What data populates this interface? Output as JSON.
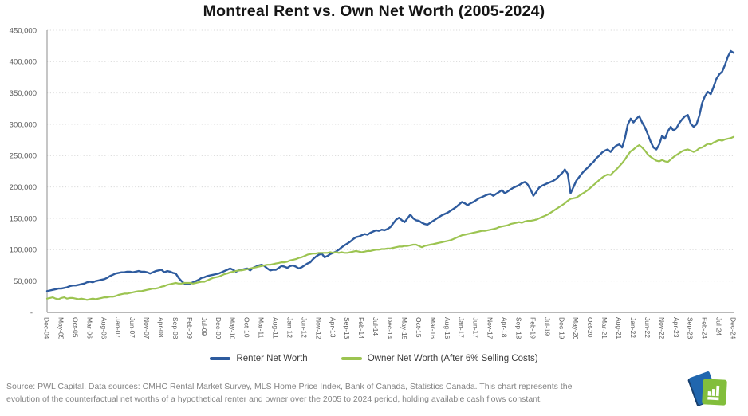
{
  "title": "Montreal Rent vs. Own Net Worth (2005-2024)",
  "footer": {
    "line1": "Source: PWL Capital. Data sources: CMHC Rental Market Survey, MLS Home Price Index, Bank of Canada, Statistics Canada. This chart represents the",
    "line2": "evolution of the counterfactual net worths of a hypothetical renter and owner over the 2005 to 2024 period, holding available cash flows constant."
  },
  "colors": {
    "renter_line": "#2E5B9E",
    "owner_line": "#9CC451",
    "grid": "#DADADA",
    "axis": "#A0A0A0",
    "tick_text": "#595959",
    "title_text": "#151515",
    "footer_text": "#848484",
    "logo_blue": "#2066AE",
    "logo_blue_dark": "#173F6E",
    "logo_green": "#82BE3B"
  },
  "chart_data": {
    "type": "line",
    "title": "Montreal Rent vs. Own Net Worth (2005-2024)",
    "xlabel": "",
    "ylabel": "",
    "currency_unit": "CAD",
    "grid": "horizontal-dotted",
    "legend_position": "bottom-center",
    "xlim_months": [
      0,
      240
    ],
    "x_start_label": "Dec-04",
    "x_end_label": "Dec-24",
    "x_tick_interval_months": 5,
    "x_tick_labels": [
      "Dec-04",
      "May-05",
      "Oct-05",
      "Mar-06",
      "Aug-06",
      "Jan-07",
      "Jun-07",
      "Nov-07",
      "Apr-08",
      "Sep-08",
      "Feb-09",
      "Jul-09",
      "Dec-09",
      "May-10",
      "Oct-10",
      "Mar-11",
      "Aug-11",
      "Jan-12",
      "Jun-12",
      "Nov-12",
      "Apr-13",
      "Sep-13",
      "Feb-14",
      "Jul-14",
      "Dec-14",
      "May-15",
      "Oct-15",
      "Mar-16",
      "Aug-16",
      "Jan-17",
      "Jun-17",
      "Nov-17",
      "Apr-18",
      "Sep-18",
      "Feb-19",
      "Jul-19",
      "Dec-19",
      "May-20",
      "Oct-20",
      "Mar-21",
      "Aug-21",
      "Jan-22",
      "Jun-22",
      "Nov-22",
      "Apr-23",
      "Sep-23",
      "Feb-24",
      "Jul-24",
      "Dec-24"
    ],
    "ylim": [
      0,
      450000
    ],
    "y_ticks": [
      {
        "value": 450000,
        "label": "450,000"
      },
      {
        "value": 400000,
        "label": "400,000"
      },
      {
        "value": 350000,
        "label": "350,000"
      },
      {
        "value": 300000,
        "label": "300,000"
      },
      {
        "value": 250000,
        "label": "250,000"
      },
      {
        "value": 200000,
        "label": "200,000"
      },
      {
        "value": 150000,
        "label": "150,000"
      },
      {
        "value": 100000,
        "label": "100,000"
      },
      {
        "value": 50000,
        "label": "50,000"
      },
      {
        "value": 0,
        "label": "-"
      }
    ],
    "series": [
      {
        "name": "Renter Net Worth",
        "color": "#2E5B9E",
        "width": 2.4,
        "values": [
          34000,
          35000,
          36000,
          37000,
          38000,
          38000,
          39000,
          40000,
          42000,
          43000,
          43000,
          44000,
          45000,
          46000,
          48000,
          49000,
          48000,
          50000,
          51000,
          52000,
          53000,
          55000,
          58000,
          60000,
          62000,
          63000,
          64000,
          64000,
          65000,
          65000,
          64000,
          65000,
          66000,
          65000,
          65000,
          64000,
          62000,
          64000,
          66000,
          67000,
          68000,
          64000,
          66000,
          65000,
          63000,
          62000,
          55000,
          50000,
          46000,
          45000,
          46000,
          48000,
          50000,
          52000,
          55000,
          56000,
          58000,
          59000,
          60000,
          61000,
          62000,
          64000,
          66000,
          68000,
          70000,
          68000,
          65000,
          67000,
          68000,
          69000,
          70000,
          67000,
          71000,
          73000,
          75000,
          76000,
          74000,
          70000,
          67000,
          68000,
          68000,
          71000,
          74000,
          73000,
          71000,
          74000,
          75000,
          73000,
          70000,
          72000,
          75000,
          78000,
          80000,
          85000,
          89000,
          92000,
          94000,
          88000,
          90000,
          93000,
          95000,
          97000,
          100000,
          104000,
          107000,
          110000,
          113000,
          117000,
          120000,
          121000,
          123000,
          125000,
          124000,
          127000,
          129000,
          131000,
          130000,
          132000,
          131000,
          133000,
          136000,
          142000,
          148000,
          151000,
          147000,
          144000,
          150000,
          156000,
          150000,
          147000,
          146000,
          143000,
          141000,
          140000,
          143000,
          146000,
          149000,
          152000,
          155000,
          157000,
          159000,
          162000,
          165000,
          168000,
          172000,
          176000,
          174000,
          171000,
          174000,
          176000,
          179000,
          182000,
          184000,
          186000,
          188000,
          189000,
          186000,
          189000,
          192000,
          195000,
          190000,
          193000,
          196000,
          199000,
          201000,
          203000,
          206000,
          208000,
          204000,
          196000,
          186000,
          192000,
          199000,
          202000,
          204000,
          206000,
          208000,
          210000,
          213000,
          218000,
          222000,
          228000,
          221000,
          190000,
          200000,
          210000,
          216000,
          222000,
          227000,
          231000,
          236000,
          240000,
          246000,
          250000,
          255000,
          258000,
          260000,
          256000,
          262000,
          266000,
          268000,
          263000,
          278000,
          300000,
          309000,
          303000,
          309000,
          313000,
          303000,
          295000,
          284000,
          272000,
          263000,
          260000,
          268000,
          282000,
          277000,
          289000,
          296000,
          290000,
          294000,
          302000,
          308000,
          313000,
          315000,
          301000,
          296000,
          300000,
          314000,
          334000,
          345000,
          352000,
          348000,
          360000,
          373000,
          380000,
          384000,
          395000,
          408000,
          417000,
          414000
        ]
      },
      {
        "name": "Owner Net Worth (After 6% Selling Costs)",
        "color": "#9CC451",
        "width": 2.2,
        "values": [
          22000,
          23000,
          24000,
          22000,
          21000,
          23000,
          24000,
          22000,
          23000,
          23000,
          22000,
          21000,
          22000,
          21000,
          20000,
          21000,
          22000,
          21000,
          22000,
          23000,
          24000,
          24000,
          25000,
          25000,
          26000,
          28000,
          29000,
          30000,
          30000,
          31000,
          32000,
          33000,
          34000,
          34000,
          35000,
          36000,
          37000,
          38000,
          38000,
          39000,
          41000,
          42000,
          44000,
          45000,
          46000,
          47000,
          46000,
          46000,
          47000,
          47000,
          47000,
          46000,
          47000,
          48000,
          49000,
          49000,
          51000,
          53000,
          55000,
          56000,
          57000,
          59000,
          61000,
          62000,
          64000,
          65000,
          66000,
          67000,
          67000,
          68000,
          69000,
          70000,
          71000,
          72000,
          73000,
          74000,
          75000,
          76000,
          76000,
          77000,
          78000,
          79000,
          80000,
          80000,
          81000,
          83000,
          84000,
          85000,
          87000,
          88000,
          90000,
          92000,
          93000,
          94000,
          94000,
          95000,
          95000,
          95000,
          95000,
          96000,
          95000,
          96000,
          95000,
          96000,
          95000,
          95000,
          96000,
          97000,
          98000,
          97000,
          96000,
          97000,
          98000,
          98000,
          99000,
          100000,
          100000,
          101000,
          101000,
          102000,
          102000,
          103000,
          104000,
          105000,
          105000,
          106000,
          106000,
          107000,
          108000,
          108000,
          106000,
          104000,
          106000,
          107000,
          108000,
          109000,
          110000,
          111000,
          112000,
          113000,
          114000,
          115000,
          117000,
          119000,
          121000,
          123000,
          124000,
          125000,
          126000,
          127000,
          128000,
          129000,
          130000,
          130000,
          131000,
          132000,
          133000,
          134000,
          136000,
          137000,
          138000,
          139000,
          141000,
          142000,
          143000,
          144000,
          143000,
          145000,
          146000,
          146000,
          147000,
          148000,
          150000,
          152000,
          154000,
          156000,
          159000,
          162000,
          165000,
          168000,
          171000,
          174000,
          178000,
          181000,
          182000,
          183000,
          186000,
          189000,
          192000,
          195000,
          199000,
          203000,
          207000,
          211000,
          215000,
          218000,
          220000,
          219000,
          224000,
          228000,
          233000,
          238000,
          244000,
          251000,
          257000,
          260000,
          264000,
          267000,
          263000,
          258000,
          252000,
          248000,
          245000,
          242000,
          241000,
          243000,
          241000,
          240000,
          244000,
          248000,
          251000,
          254000,
          257000,
          259000,
          260000,
          258000,
          256000,
          258000,
          262000,
          263000,
          266000,
          269000,
          268000,
          271000,
          273000,
          275000,
          274000,
          276000,
          277000,
          278000,
          280000
        ]
      }
    ]
  }
}
